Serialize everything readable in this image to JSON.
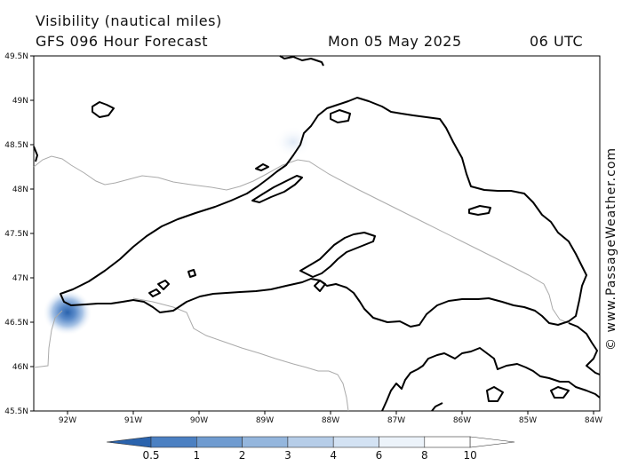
{
  "header": {
    "title": "Visibility (nautical miles)",
    "model": "GFS 096 Hour Forecast",
    "date": "Mon 05 May 2025",
    "time": "06 UTC"
  },
  "map": {
    "region": "Lake Superior",
    "lat_labels": [
      "49.5N",
      "49N",
      "48.5N",
      "48N",
      "47.5N",
      "47N",
      "46.5N",
      "46N",
      "45.5N"
    ],
    "lon_labels": [
      "92W",
      "91W",
      "90W",
      "89W",
      "88W",
      "87W",
      "86W",
      "85W",
      "84W"
    ],
    "colors": {
      "coastline": "#000000",
      "border": "#aaaaaa",
      "low_visibility": "#2e6bb4"
    },
    "features": [
      {
        "name": "low-visibility-duluth",
        "lon": -91.95,
        "lat": 46.62,
        "min_visibility_nm": 0.5
      },
      {
        "name": "low-visibility-north-shore",
        "lon": -88.6,
        "lat": 48.5,
        "min_visibility_nm": 8
      }
    ]
  },
  "colorbar": {
    "labels": [
      "0.5",
      "1",
      "2",
      "3",
      "4",
      "6",
      "8",
      "10"
    ],
    "colors": [
      "#2a63ad",
      "#4b80c2",
      "#6f9bd0",
      "#94b6dd",
      "#b6cde8",
      "#d3e2f3",
      "#ecf3fa",
      "#ffffff"
    ]
  },
  "credit": "© www.PassageWeather.com"
}
